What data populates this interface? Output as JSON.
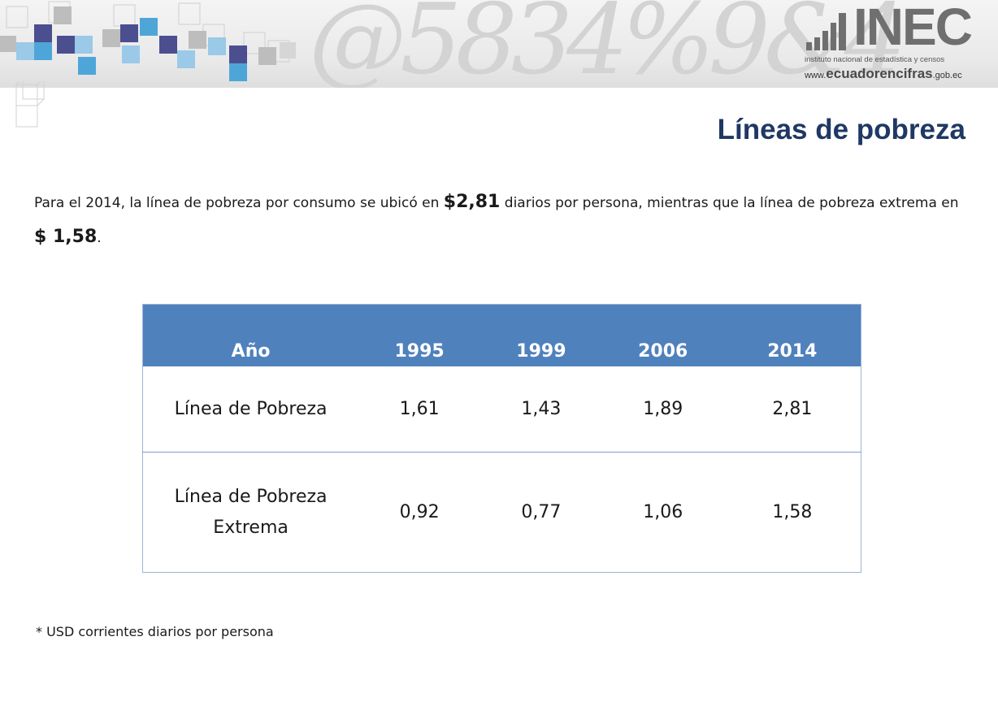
{
  "header": {
    "logo_word": "INEC",
    "logo_subtitle": "instituto nacional de estadística y censos",
    "url_prefix": "www.",
    "url_main": "ecuadorencifras",
    "url_suffix": ".gob.ec",
    "deco_numerals": "@5834%9&4",
    "colors": {
      "cube_dark": "#4b4f8f",
      "cube_blue": "#4ea6d8",
      "cube_light": "#9bc9e8",
      "cube_gray": "#bdbdbd"
    }
  },
  "slide": {
    "title": "Líneas de pobreza",
    "intro": {
      "part1": "Para el 2014, la línea de pobreza por consumo se ubicó en ",
      "amount1": "$2,81",
      "part2": " diarios por persona, mientras que la línea de pobreza extrema en ",
      "amount2": "$ 1,58",
      "part3": "."
    },
    "footnote": "* USD corrientes diarios por persona"
  },
  "table": {
    "header_color": "#4f81bd",
    "columns": [
      "Año",
      "1995",
      "1999",
      "2006",
      "2014"
    ],
    "rows": [
      {
        "label_line1": "Línea de Pobreza",
        "label_line2": "",
        "values": [
          "1,61",
          "1,43",
          "1,89",
          "2,81"
        ]
      },
      {
        "label_line1": "Línea de Pobreza",
        "label_line2": "Extrema",
        "values": [
          "0,92",
          "0,77",
          "1,06",
          "1,58"
        ]
      }
    ]
  }
}
